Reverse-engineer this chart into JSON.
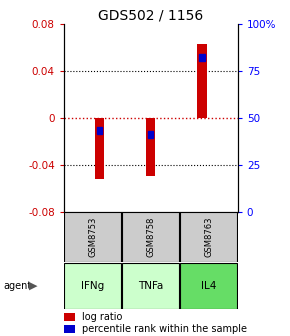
{
  "title": "GDS502 / 1156",
  "samples": [
    "GSM8753",
    "GSM8758",
    "GSM8763"
  ],
  "agents": [
    "IFNg",
    "TNFa",
    "IL4"
  ],
  "log_ratios": [
    -0.052,
    -0.05,
    0.063
  ],
  "percentile_ranks": [
    43,
    41,
    82
  ],
  "bar_color": "#cc0000",
  "percentile_color": "#0000cc",
  "ylim_left": [
    -0.08,
    0.08
  ],
  "ylim_right": [
    0,
    100
  ],
  "yticks_left": [
    -0.08,
    -0.04,
    0,
    0.04,
    0.08
  ],
  "yticks_right": [
    0,
    25,
    50,
    75,
    100
  ],
  "ytick_labels_right": [
    "0",
    "25",
    "50",
    "75",
    "100%"
  ],
  "agent_colors": [
    "#ccffcc",
    "#ccffcc",
    "#66dd66"
  ],
  "sample_bg": "#cccccc",
  "zero_line_color": "#cc0000",
  "bar_width": 0.18,
  "title_fontsize": 10,
  "tick_fontsize": 7.5,
  "legend_fontsize": 7
}
